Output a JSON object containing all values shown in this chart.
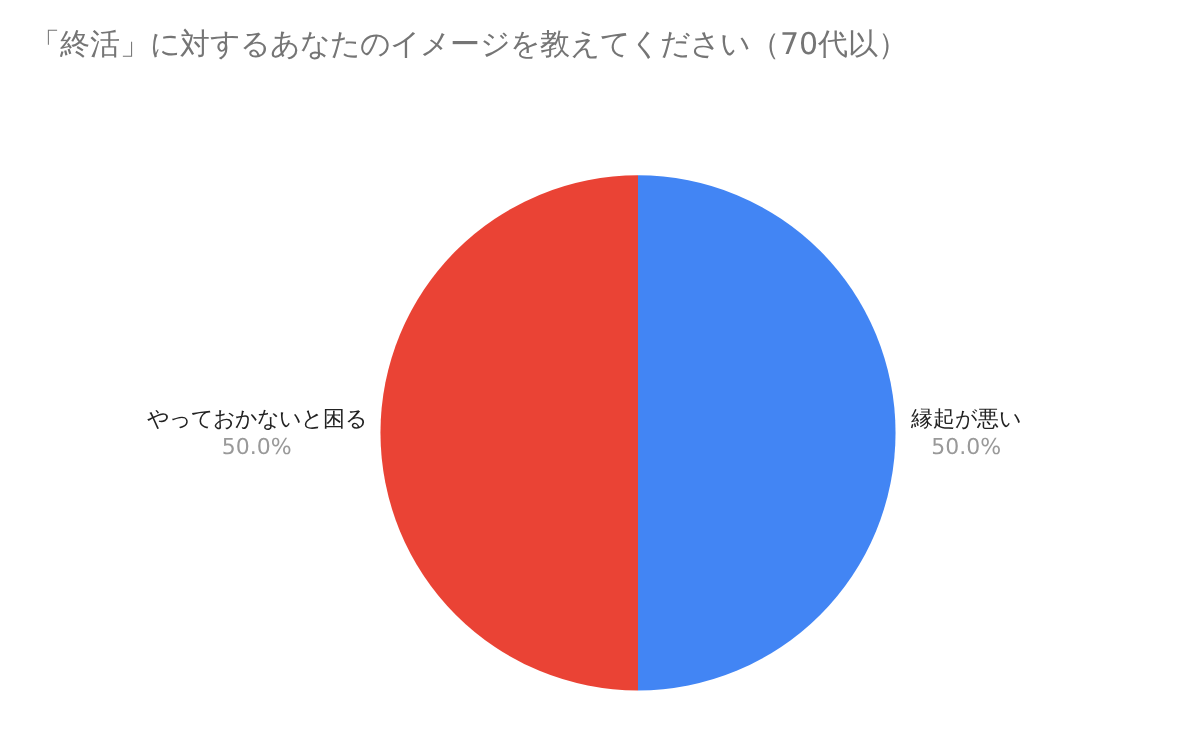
{
  "chart_data": {
    "type": "pie",
    "title": "「終活」に対するあなたのイメージを教えてください（70代以）",
    "categories": [
      "縁起が悪い",
      "やっておかないと困る"
    ],
    "values": [
      50,
      50
    ],
    "value_labels": [
      "50.0%",
      "50.0%"
    ],
    "colors": [
      "#4285f4",
      "#ea4335"
    ],
    "legend": false
  }
}
